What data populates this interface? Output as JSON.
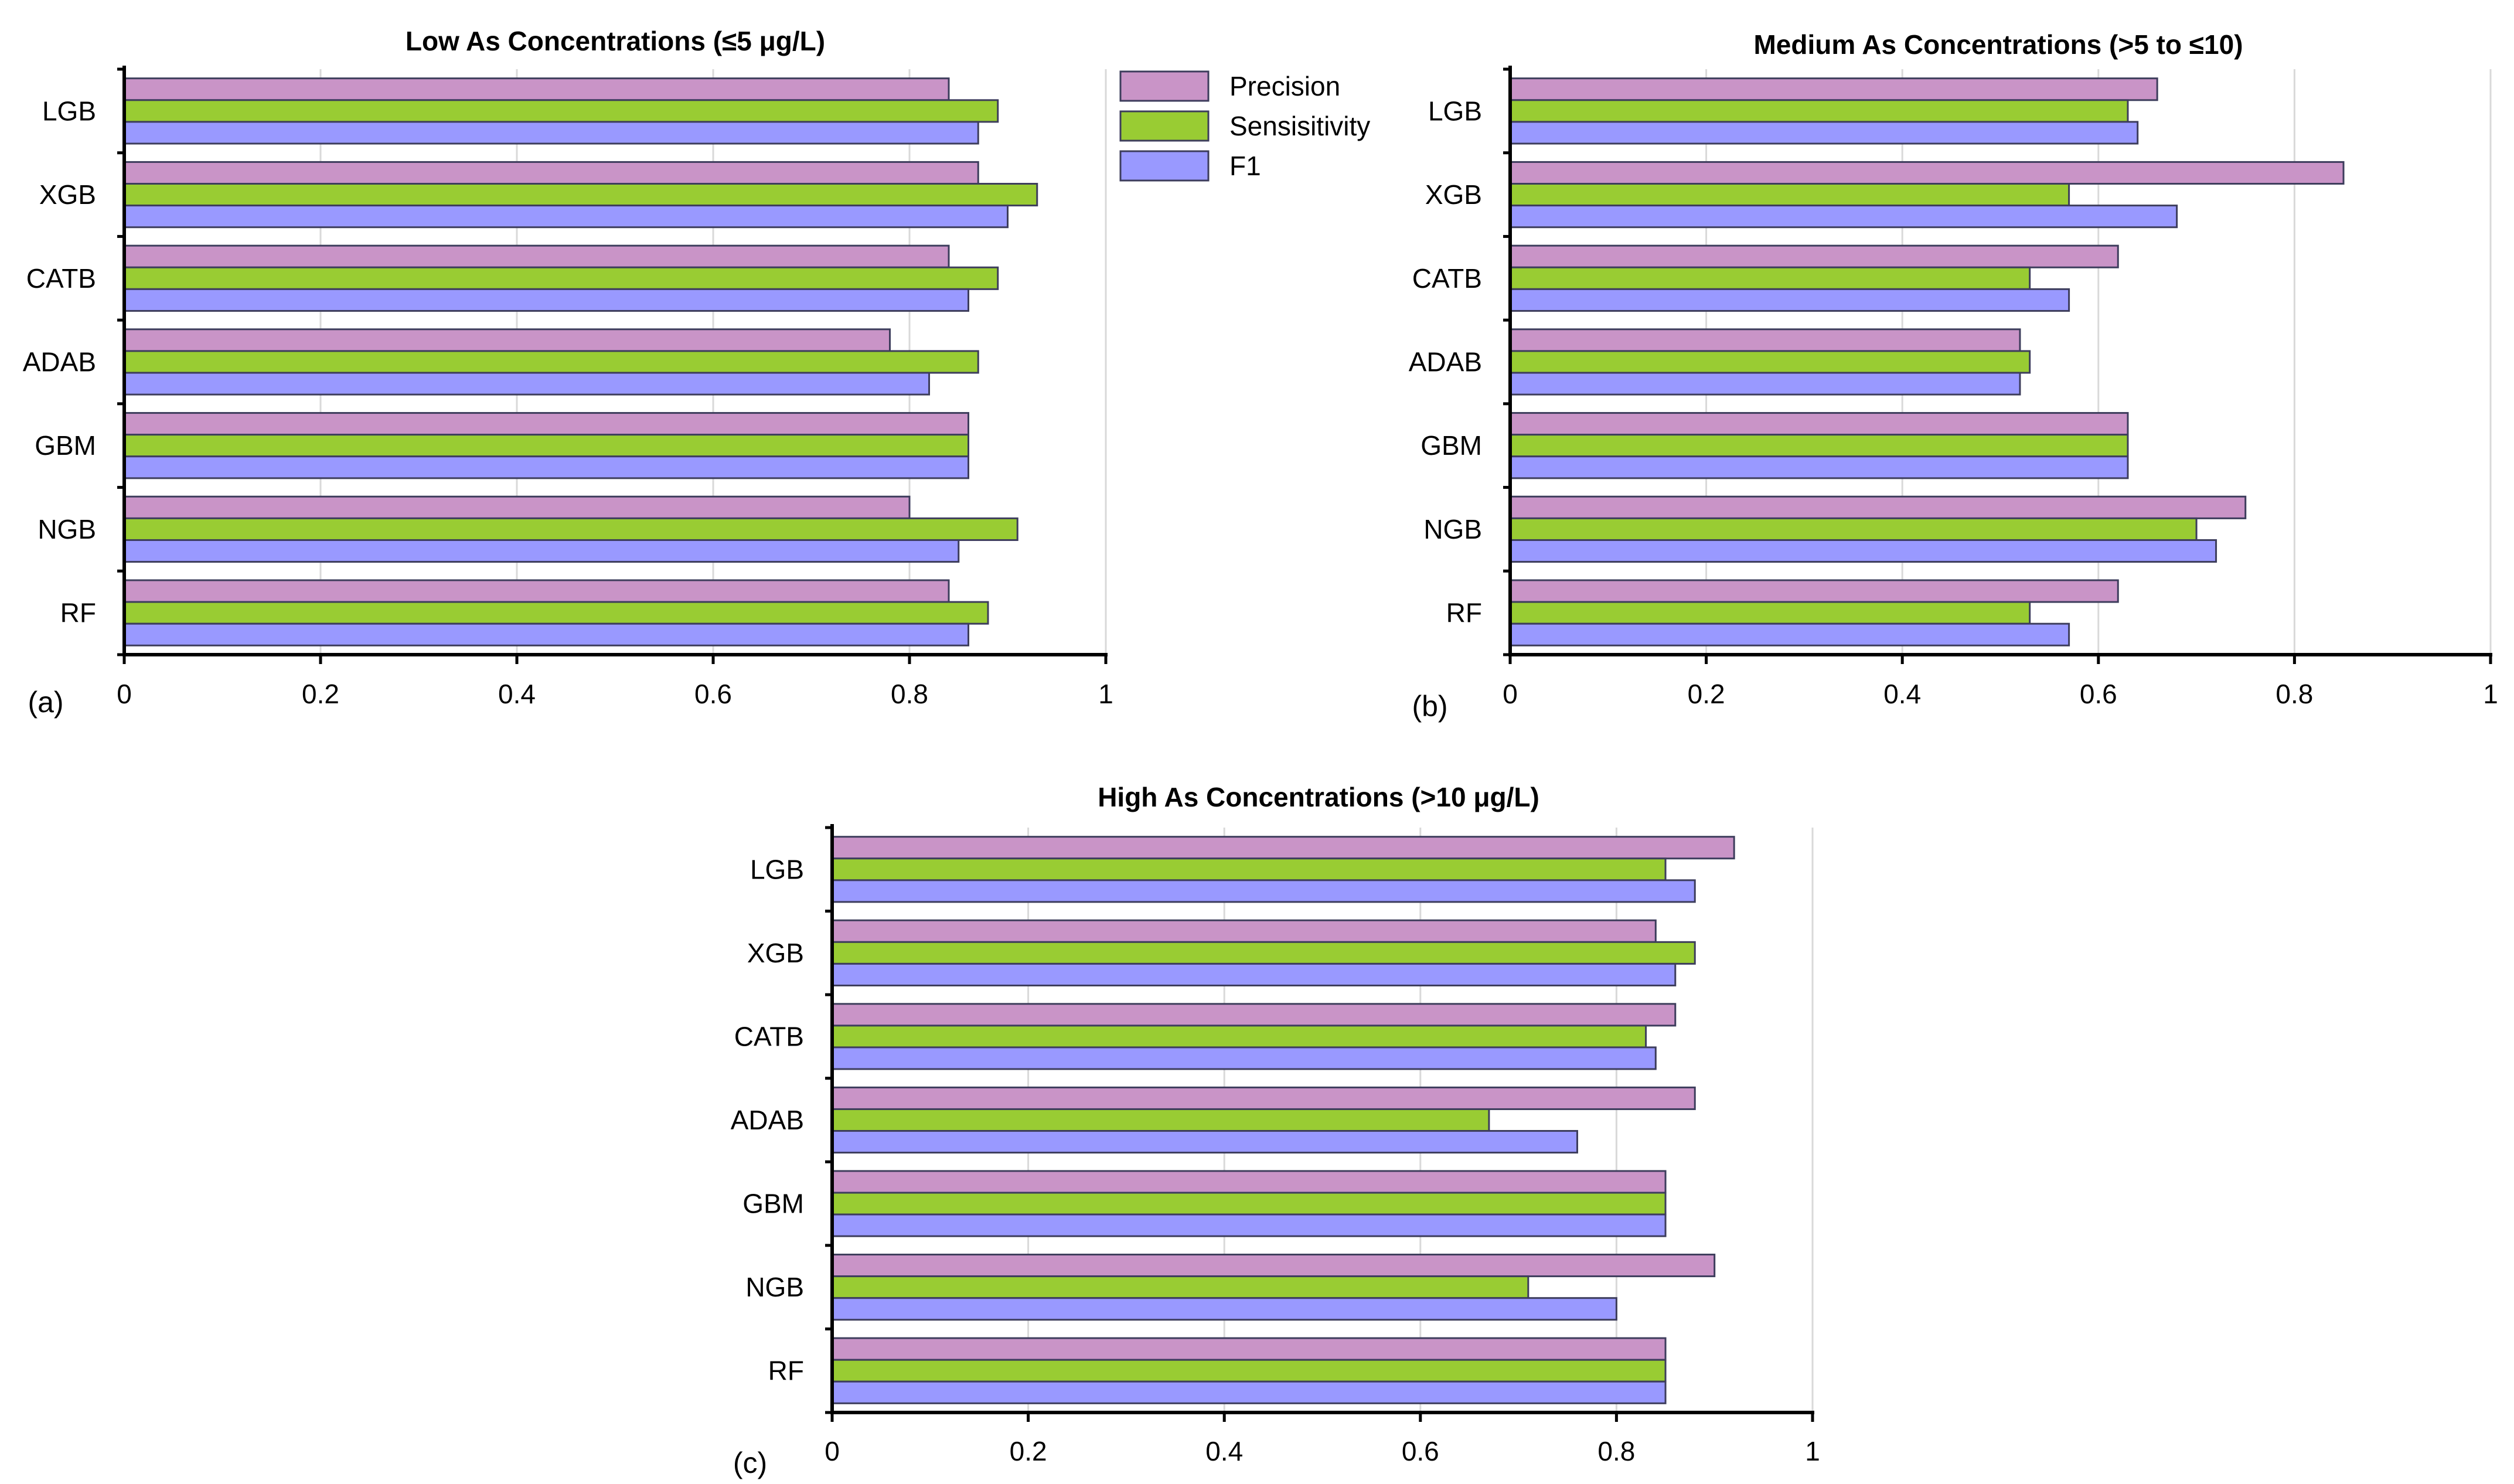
{
  "chart_data": [
    {
      "type": "bar",
      "orientation": "horizontal",
      "title": "Low As Concentrations (≤5 μg/L)",
      "panel_label": "(a)",
      "categories": [
        "LGB",
        "XGB",
        "CATB",
        "ADAB",
        "GBM",
        "NGB",
        "RF"
      ],
      "xlim": [
        0,
        1
      ],
      "xticks": [
        "0",
        "0.2",
        "0.4",
        "0.6",
        "0.8",
        "1"
      ],
      "grid": true,
      "series": [
        {
          "name": "Precision",
          "values": [
            0.84,
            0.87,
            0.84,
            0.78,
            0.86,
            0.8,
            0.84
          ]
        },
        {
          "name": "Sensisitivity",
          "values": [
            0.89,
            0.93,
            0.89,
            0.87,
            0.86,
            0.91,
            0.88
          ]
        },
        {
          "name": "F1",
          "values": [
            0.87,
            0.9,
            0.86,
            0.82,
            0.86,
            0.85,
            0.86
          ]
        }
      ]
    },
    {
      "type": "bar",
      "orientation": "horizontal",
      "title": "Medium As Concentrations (>5 to ≤10)",
      "panel_label": "(b)",
      "categories": [
        "LGB",
        "XGB",
        "CATB",
        "ADAB",
        "GBM",
        "NGB",
        "RF"
      ],
      "xlim": [
        0,
        1
      ],
      "xticks": [
        "0",
        "0.2",
        "0.4",
        "0.6",
        "0.8",
        "1"
      ],
      "grid": true,
      "series": [
        {
          "name": "Precision",
          "values": [
            0.66,
            0.85,
            0.62,
            0.52,
            0.63,
            0.75,
            0.62
          ]
        },
        {
          "name": "Sensisitivity",
          "values": [
            0.63,
            0.57,
            0.53,
            0.53,
            0.63,
            0.7,
            0.53
          ]
        },
        {
          "name": "F1",
          "values": [
            0.64,
            0.68,
            0.57,
            0.52,
            0.63,
            0.72,
            0.57
          ]
        }
      ]
    },
    {
      "type": "bar",
      "orientation": "horizontal",
      "title": "High As Concentrations (>10 μg/L)",
      "panel_label": "(c)",
      "categories": [
        "LGB",
        "XGB",
        "CATB",
        "ADAB",
        "GBM",
        "NGB",
        "RF"
      ],
      "xlim": [
        0,
        1
      ],
      "xticks": [
        "0",
        "0.2",
        "0.4",
        "0.6",
        "0.8",
        "1"
      ],
      "grid": true,
      "series": [
        {
          "name": "Precision",
          "values": [
            0.92,
            0.84,
            0.86,
            0.88,
            0.85,
            0.9,
            0.85
          ]
        },
        {
          "name": "Sensisitivity",
          "values": [
            0.85,
            0.88,
            0.83,
            0.67,
            0.85,
            0.71,
            0.85
          ]
        },
        {
          "name": "F1",
          "values": [
            0.88,
            0.86,
            0.84,
            0.76,
            0.85,
            0.8,
            0.85
          ]
        }
      ]
    }
  ],
  "legend": {
    "position": "top-center",
    "items": [
      {
        "label": "Precision",
        "color": "#c994c7"
      },
      {
        "label": "Sensisitivity",
        "color": "#99cc33"
      },
      {
        "label": "F1",
        "color": "#9999ff"
      }
    ]
  },
  "colors": {
    "precision": "#c994c7",
    "sensitivity": "#99cc33",
    "f1": "#9999ff",
    "bar_edge": "#3d3d5c"
  }
}
